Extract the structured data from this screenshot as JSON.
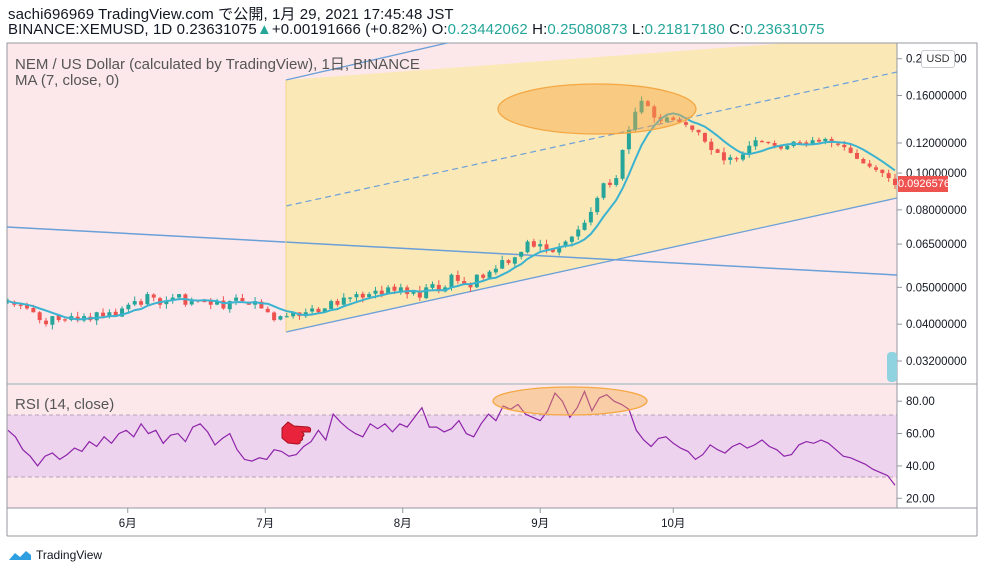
{
  "header": {
    "line1": "sachi696969 TradingView.com で公開, 1月 29, 2021 17:45:48 JST",
    "symbol": "BINANCE:XEMUSD, 1D",
    "last": "0.23631075",
    "change": "+0.00191666 (+0.82%)",
    "o_label": "O:",
    "o": "0.23442062",
    "h_label": "H:",
    "h": "0.25080873",
    "l_label": "L:",
    "l": "0.21817180",
    "c_label": "C:",
    "c": "0.23631075"
  },
  "main_legend": {
    "title": "NEM / US Dollar (calculated by TradingView), 1日, BINANCE",
    "ma": "MA (7, close, 0)"
  },
  "rsi_legend": "RSI (14, close)",
  "currency_tag": "USD",
  "last_price_tag": "0.09265762",
  "brand": "TradingView",
  "colors": {
    "up": "#26a69a",
    "down": "#ef5350",
    "ma": "#3bb3d0",
    "rsi": "#8e24aa",
    "trend": "#6a9fd8",
    "channel_fill": "#fbe8b7",
    "bg_pink": "#fce8ea",
    "ellipse": "#f5a742"
  },
  "chart_data": [
    {
      "type": "candlestick",
      "title": "NEM / US Dollar (calculated by TradingView), 1日, BINANCE",
      "x_ticks": [
        "6月",
        "7月",
        "8月",
        "9月",
        "10月"
      ],
      "y_ticks": [
        "0.20000000",
        "0.16000000",
        "0.12000000",
        "0.10000000",
        "0.08000000",
        "0.06500000",
        "0.05000000",
        "0.04000000",
        "0.03200000"
      ],
      "y_scale": "log",
      "ylim": [
        0.028,
        0.22
      ],
      "series": [
        {
          "name": "XEMUSD",
          "close_approx": [
            0.046,
            0.045,
            0.045,
            0.044,
            0.043,
            0.041,
            0.04,
            0.042,
            0.041,
            0.041,
            0.042,
            0.041,
            0.042,
            0.041,
            0.043,
            0.042,
            0.043,
            0.042,
            0.044,
            0.045,
            0.046,
            0.045,
            0.048,
            0.047,
            0.045,
            0.046,
            0.047,
            0.048,
            0.045,
            0.046,
            0.046,
            0.046,
            0.045,
            0.046,
            0.044,
            0.046,
            0.047,
            0.046,
            0.045,
            0.046,
            0.044,
            0.043,
            0.041,
            0.042,
            0.042,
            0.043,
            0.042,
            0.043,
            0.044,
            0.043,
            0.044,
            0.046,
            0.045,
            0.047,
            0.047,
            0.048,
            0.047,
            0.048,
            0.049,
            0.048,
            0.05,
            0.049,
            0.05,
            0.048,
            0.049,
            0.047,
            0.05,
            0.051,
            0.049,
            0.05,
            0.054,
            0.052,
            0.051,
            0.05,
            0.054,
            0.053,
            0.055,
            0.056,
            0.059,
            0.058,
            0.06,
            0.062,
            0.066,
            0.064,
            0.065,
            0.063,
            0.062,
            0.064,
            0.066,
            0.068,
            0.071,
            0.074,
            0.079,
            0.086,
            0.094,
            0.093,
            0.097,
            0.115,
            0.13,
            0.145,
            0.155,
            0.15,
            0.14,
            0.137,
            0.14,
            0.138,
            0.136,
            0.134,
            0.13,
            0.128,
            0.121,
            0.115,
            0.113,
            0.108,
            0.11,
            0.109,
            0.112,
            0.118,
            0.122,
            0.121,
            0.12,
            0.118,
            0.116,
            0.118,
            0.121,
            0.12,
            0.119,
            0.122,
            0.121,
            0.123,
            0.12,
            0.119,
            0.117,
            0.113,
            0.109,
            0.106,
            0.104,
            0.102,
            0.1,
            0.097,
            0.093
          ]
        },
        {
          "name": "MA (7, close, 0)"
        }
      ],
      "annotations": [
        "ascending channel",
        "descending trend line",
        "top ellipse"
      ]
    },
    {
      "type": "line",
      "title": "RSI (14, close)",
      "y_ticks": [
        "80.00",
        "60.00",
        "40.00",
        "20.00"
      ],
      "ylim": [
        14,
        90
      ],
      "bands": [
        30,
        70
      ],
      "series": [
        {
          "name": "RSI",
          "values": [
            62,
            58,
            50,
            46,
            40,
            46,
            48,
            44,
            47,
            51,
            49,
            55,
            52,
            58,
            54,
            60,
            62,
            58,
            66,
            60,
            62,
            54,
            59,
            60,
            55,
            64,
            66,
            61,
            53,
            57,
            60,
            50,
            44,
            43,
            45,
            44,
            50,
            49,
            46,
            47,
            52,
            55,
            62,
            56,
            72,
            67,
            63,
            60,
            58,
            66,
            63,
            66,
            61,
            66,
            64,
            70,
            76,
            64,
            64,
            61,
            63,
            68,
            60,
            58,
            66,
            72,
            68,
            77,
            75,
            78,
            72,
            70,
            68,
            74,
            85,
            80,
            70,
            76,
            86,
            74,
            82,
            84,
            80,
            78,
            75,
            62,
            56,
            52,
            57,
            58,
            54,
            51,
            49,
            44,
            47,
            53,
            50,
            48,
            52,
            54,
            51,
            53,
            56,
            52,
            50,
            46,
            47,
            53,
            55,
            54,
            56,
            54,
            50,
            46,
            45,
            43,
            41,
            38,
            36,
            34,
            28
          ]
        }
      ]
    }
  ]
}
